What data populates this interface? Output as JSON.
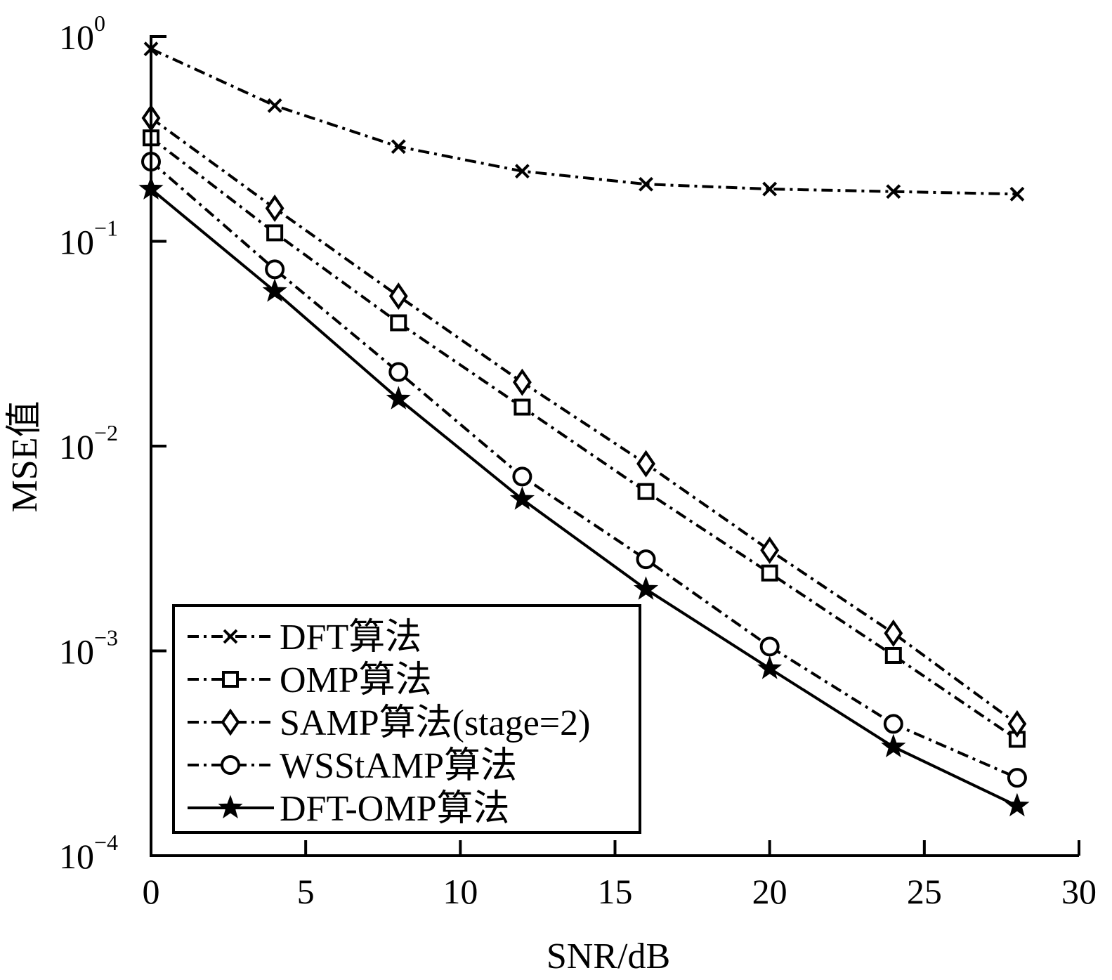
{
  "chart_data": {
    "type": "line",
    "xlabel": "SNR/dB",
    "ylabel": "MSE值",
    "xlim": [
      0,
      30
    ],
    "ylim": [
      0.0001,
      1
    ],
    "yscale": "log",
    "grid": false,
    "legend_position": "bottom-left",
    "x_ticks": [
      "0",
      "5",
      "10",
      "15",
      "20",
      "25",
      "30"
    ],
    "y_ticks": [
      {
        "base": "10",
        "exp": "0"
      },
      {
        "base": "10",
        "exp": "−1"
      },
      {
        "base": "10",
        "exp": "−2"
      },
      {
        "base": "10",
        "exp": "−3"
      },
      {
        "base": "10",
        "exp": "−4"
      }
    ],
    "x": [
      0,
      4,
      8,
      12,
      16,
      20,
      24,
      28
    ],
    "series": [
      {
        "name": "DFT算法",
        "marker": "x",
        "line": "dash-dot",
        "values": [
          0.87,
          0.46,
          0.29,
          0.22,
          0.19,
          0.18,
          0.175,
          0.17
        ]
      },
      {
        "name": "OMP算法",
        "marker": "square",
        "line": "dash-dot",
        "values": [
          0.32,
          0.11,
          0.04,
          0.0155,
          0.006,
          0.0024,
          0.00095,
          0.00037
        ]
      },
      {
        "name": "SAMP算法(stage=2)",
        "marker": "diamond",
        "line": "dash-dot",
        "values": [
          0.4,
          0.145,
          0.054,
          0.0205,
          0.0082,
          0.0031,
          0.00122,
          0.00044
        ]
      },
      {
        "name": "WSStAMP算法",
        "marker": "circle",
        "line": "dash-dot",
        "values": [
          0.245,
          0.073,
          0.023,
          0.0071,
          0.0028,
          0.00105,
          0.00044,
          0.00024
        ]
      },
      {
        "name": "DFT-OMP算法",
        "marker": "star",
        "line": "solid",
        "values": [
          0.18,
          0.057,
          0.017,
          0.0055,
          0.002,
          0.00082,
          0.00034,
          0.000175
        ]
      }
    ]
  }
}
